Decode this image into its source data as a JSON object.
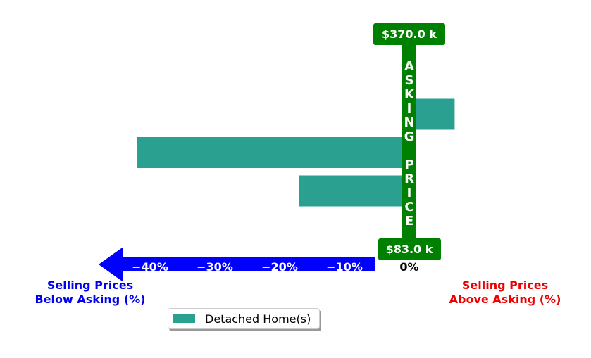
{
  "chart_data": {
    "type": "bar",
    "orientation": "horizontal",
    "series": [
      {
        "name": "Detached Home(s)",
        "color": "#2aa090",
        "values": [
          -1,
          7,
          -42,
          -17
        ]
      }
    ],
    "x_ticks": [
      "−40%",
      "−30%",
      "−20%",
      "−10%"
    ],
    "x_zero_label": "0%",
    "xlim": [
      -48,
      27
    ],
    "asking_price_label": "ASKING PRICE",
    "top_price": "$370.0 k",
    "bottom_price": "$83.0 k",
    "left_label": [
      "Selling Prices",
      "Below Asking (%)"
    ],
    "right_label": [
      "Selling Prices",
      "Above Asking (%)"
    ],
    "colors": {
      "bar": "#2aa090",
      "asking": "#008000",
      "arrow": "#0000ff",
      "below": "#0000ee",
      "above": "#ee0000"
    },
    "legend_position": "bottom-center"
  }
}
